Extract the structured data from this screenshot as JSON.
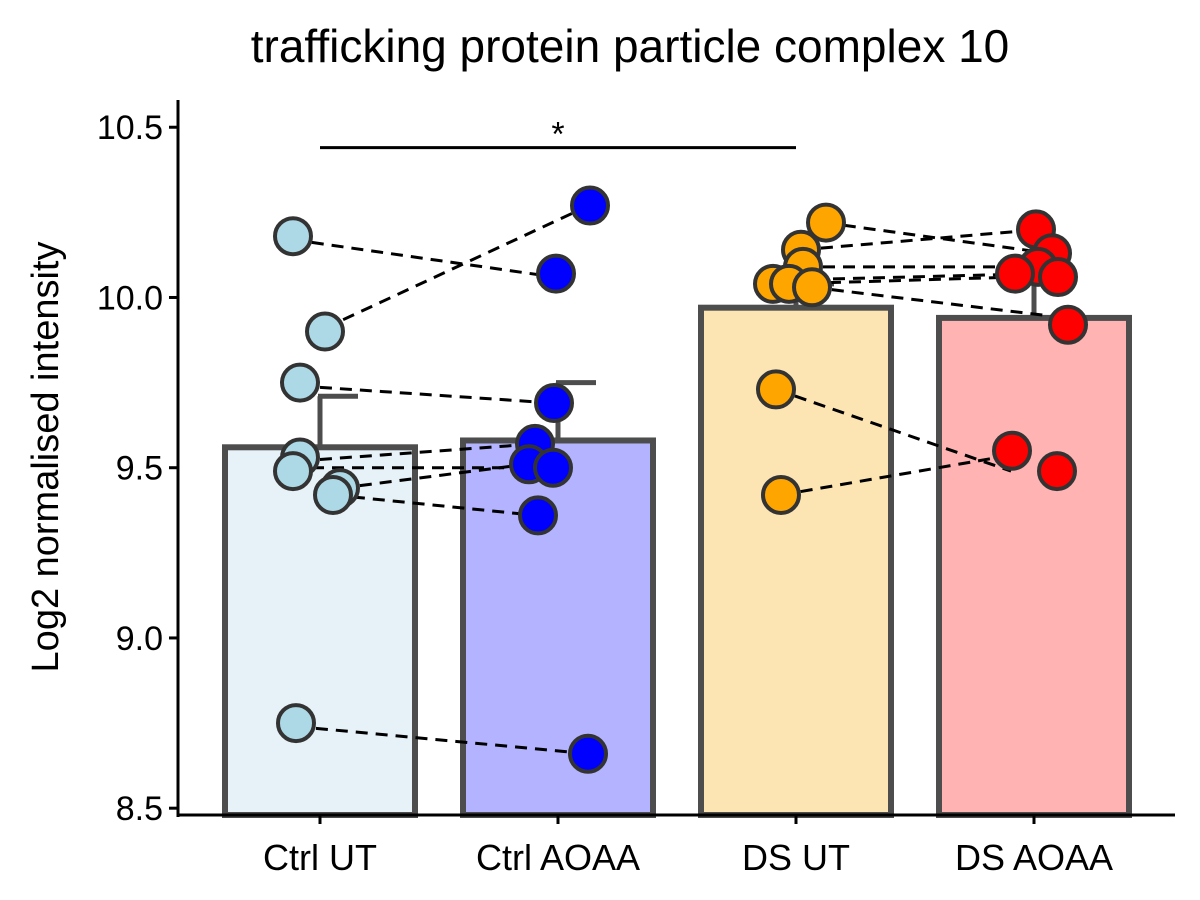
{
  "chart_data": {
    "type": "bar",
    "title": "trafficking protein particle complex 10",
    "xlabel": "",
    "ylabel": "Log2 normalised intensity",
    "ylim": [
      8.48,
      10.58
    ],
    "yticks": [
      8.5,
      9.0,
      9.5,
      10.0,
      10.5
    ],
    "ytick_labels": [
      "8.5",
      "9.0",
      "9.5",
      "10.0",
      "10.5"
    ],
    "grid": false,
    "legend": "none",
    "categories": [
      "Ctrl UT",
      "Ctrl AOAA",
      "DS UT",
      "DS AOAA"
    ],
    "bar_values": [
      9.56,
      9.58,
      9.97,
      9.94
    ],
    "error_upper": [
      9.71,
      9.75,
      10.04,
      10.08
    ],
    "bar_fill_colors": [
      "#e6f2f8",
      "#b3b3ff",
      "#fde5b3",
      "#ffb3b3"
    ],
    "point_colors": [
      "#add8e6",
      "#0000ff",
      "#ffa500",
      "#ff0000"
    ],
    "bar_edge_color": "#4d4d4d",
    "points": [
      [
        10.18,
        9.9,
        9.75,
        9.53,
        9.49,
        9.44,
        9.42,
        8.75
      ],
      [
        10.27,
        10.07,
        9.69,
        9.57,
        9.51,
        9.5,
        9.36,
        8.66
      ],
      [
        10.22,
        10.14,
        10.09,
        10.04,
        10.04,
        10.03,
        9.73,
        9.42
      ],
      [
        10.2,
        10.13,
        10.09,
        10.07,
        10.06,
        9.92,
        9.55,
        9.49
      ]
    ],
    "paired_lines": [
      {
        "groups": [
          0,
          1
        ],
        "from": 10.17,
        "to": 10.06
      },
      {
        "groups": [
          0,
          1
        ],
        "from": 9.91,
        "to": 10.27
      },
      {
        "groups": [
          0,
          1
        ],
        "from": 9.74,
        "to": 9.69
      },
      {
        "groups": [
          0,
          1
        ],
        "from": 9.52,
        "to": 9.57
      },
      {
        "groups": [
          0,
          1
        ],
        "from": 9.5,
        "to": 9.5
      },
      {
        "groups": [
          0,
          1
        ],
        "from": 9.44,
        "to": 9.52
      },
      {
        "groups": [
          0,
          1
        ],
        "from": 9.42,
        "to": 9.36
      },
      {
        "groups": [
          0,
          1
        ],
        "from": 8.74,
        "to": 8.66
      },
      {
        "groups": [
          2,
          3
        ],
        "from": 10.22,
        "to": 10.13
      },
      {
        "groups": [
          2,
          3
        ],
        "from": 10.14,
        "to": 10.2
      },
      {
        "groups": [
          2,
          3
        ],
        "from": 10.09,
        "to": 10.09
      },
      {
        "groups": [
          2,
          3
        ],
        "from": 10.05,
        "to": 10.07
      },
      {
        "groups": [
          2,
          3
        ],
        "from": 10.04,
        "to": 10.06
      },
      {
        "groups": [
          2,
          3
        ],
        "from": 10.03,
        "to": 9.94
      },
      {
        "groups": [
          2,
          3
        ],
        "from": 9.73,
        "to": 9.49
      },
      {
        "groups": [
          2,
          3
        ],
        "from": 9.42,
        "to": 9.55
      }
    ],
    "significance": [
      {
        "from": "Ctrl UT",
        "to": "DS UT",
        "y": 10.44,
        "label": "*"
      }
    ]
  }
}
